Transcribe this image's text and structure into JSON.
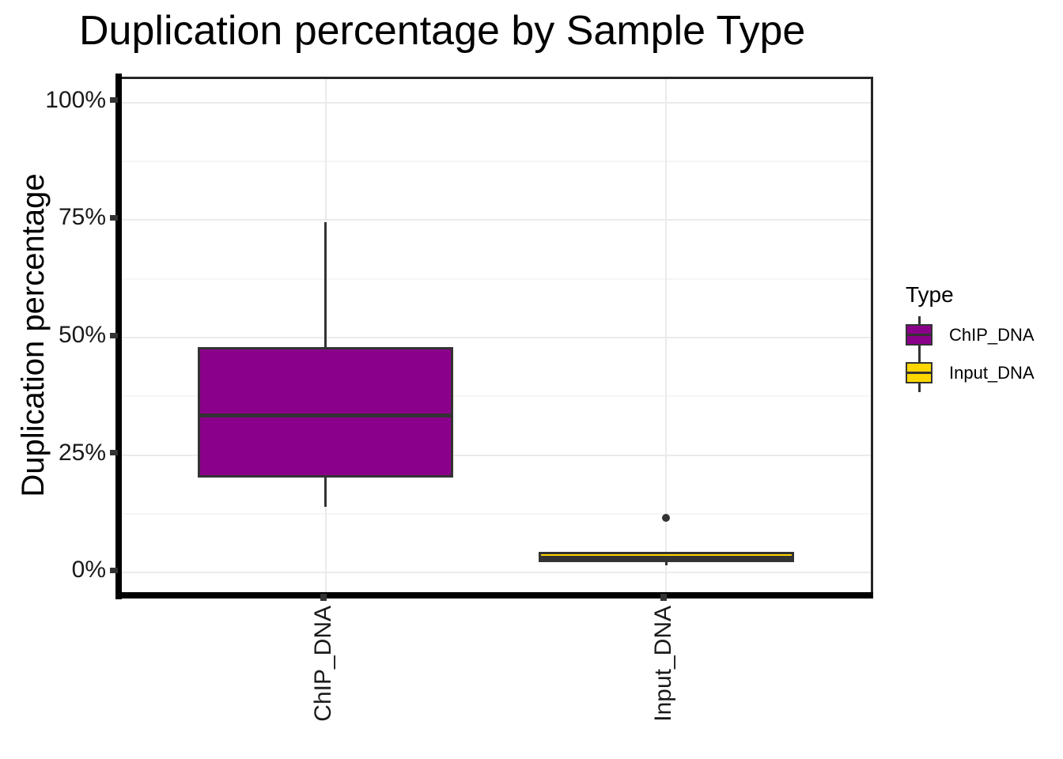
{
  "chart_data": {
    "type": "boxplot",
    "title": "Duplication percentage by Sample Type",
    "ylabel": "Duplication percentage",
    "xlabel": "",
    "categories": [
      "ChIP_DNA",
      "Input_DNA"
    ],
    "ylim": [
      -5,
      105
    ],
    "yticks": {
      "values": [
        0,
        25,
        50,
        75,
        100
      ],
      "labels": [
        "0%",
        "25%",
        "50%",
        "75%",
        "100%"
      ]
    },
    "grid": {
      "major": true,
      "minor": true
    },
    "legend_position": "right",
    "boxes": [
      {
        "category": "ChIP_DNA",
        "fill": "#8B008B",
        "whisker_low": 14.0,
        "q1": 20.2,
        "median": 33.4,
        "q3": 48.0,
        "whisker_high": 74.5,
        "outliers": []
      },
      {
        "category": "Input_DNA",
        "fill": "#FFD700",
        "whisker_low": 1.5,
        "q1": 2.2,
        "median": 3.2,
        "q3": 4.4,
        "whisker_high": 4.4,
        "outliers": [
          11.7
        ]
      }
    ]
  },
  "legend": {
    "title": "Type",
    "items": [
      {
        "label": "ChIP_DNA",
        "color": "#8B008B"
      },
      {
        "label": "Input_DNA",
        "color": "#FFD700"
      }
    ]
  },
  "colors": {
    "box_stroke": "#333333",
    "grid_major": "#EBEBEB",
    "grid_minor": "#F5F5F5",
    "axis_line": "#000000",
    "panel_border": "#262626",
    "tick": "#333333",
    "outlier": "#333333",
    "text": "#000000",
    "background": "#FFFFFF"
  }
}
